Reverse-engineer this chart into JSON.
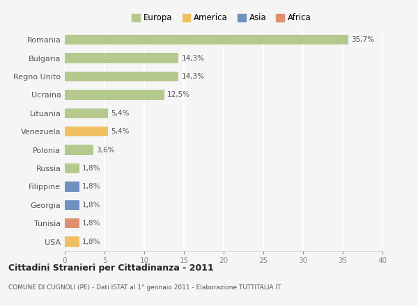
{
  "categories": [
    "Romania",
    "Bulgaria",
    "Regno Unito",
    "Ucraina",
    "Lituania",
    "Venezuela",
    "Polonia",
    "Russia",
    "Filippine",
    "Georgia",
    "Tunisia",
    "USA"
  ],
  "values": [
    35.7,
    14.3,
    14.3,
    12.5,
    5.4,
    5.4,
    3.6,
    1.8,
    1.8,
    1.8,
    1.8,
    1.8
  ],
  "labels": [
    "35,7%",
    "14,3%",
    "14,3%",
    "12,5%",
    "5,4%",
    "5,4%",
    "3,6%",
    "1,8%",
    "1,8%",
    "1,8%",
    "1,8%",
    "1,8%"
  ],
  "colors": [
    "#b5c98e",
    "#b5c98e",
    "#b5c98e",
    "#b5c98e",
    "#b5c98e",
    "#f0c060",
    "#b5c98e",
    "#b5c98e",
    "#7090c0",
    "#7090c0",
    "#e09070",
    "#f0c060"
  ],
  "legend_labels": [
    "Europa",
    "America",
    "Asia",
    "Africa"
  ],
  "legend_colors": [
    "#b5c98e",
    "#f0c060",
    "#7090c0",
    "#e09070"
  ],
  "title": "Cittadini Stranieri per Cittadinanza - 2011",
  "subtitle": "COMUNE DI CUGNOLI (PE) - Dati ISTAT al 1° gennaio 2011 - Elaborazione TUTTITALIA.IT",
  "xlim": [
    0,
    40
  ],
  "xticks": [
    0,
    5,
    10,
    15,
    20,
    25,
    30,
    35,
    40
  ],
  "background_color": "#f5f5f5",
  "grid_color": "#ffffff",
  "bar_height": 0.55
}
